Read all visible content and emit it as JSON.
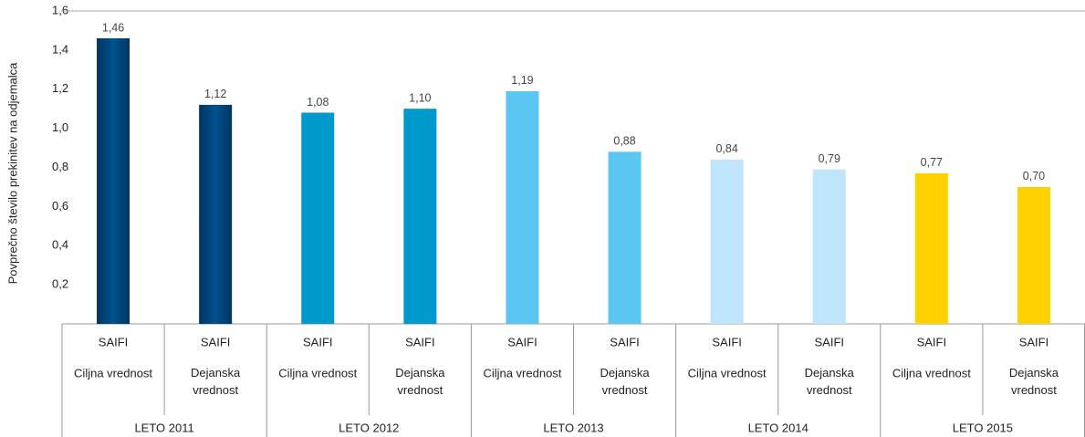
{
  "chart_data": {
    "type": "bar",
    "y_axis_label": "Povprečno število prekinitev na odjemalca",
    "categories": [
      "SAIFI",
      "SAIFI",
      "SAIFI",
      "SAIFI",
      "SAIFI",
      "SAIFI",
      "SAIFI",
      "SAIFI",
      "SAIFI",
      "SAIFI"
    ],
    "subcategories": [
      [
        "Ciljna vrednost"
      ],
      [
        "Dejanska",
        "vrednost"
      ],
      [
        "Ciljna vrednost"
      ],
      [
        "Dejanska",
        "vrednost"
      ],
      [
        "Ciljna vrednost"
      ],
      [
        "Dejanska",
        "vrednost"
      ],
      [
        "Ciljna vrednost"
      ],
      [
        "Dejanska",
        "vrednost"
      ],
      [
        "Ciljna vrednost"
      ],
      [
        "Dejanska",
        "vrednost"
      ]
    ],
    "groups": [
      "LETO 2011",
      "LETO 2012",
      "LETO 2013",
      "LETO 2014",
      "LETO 2015"
    ],
    "values": [
      1.46,
      1.12,
      1.08,
      1.1,
      1.19,
      0.88,
      0.84,
      0.79,
      0.77,
      0.7
    ],
    "value_labels": [
      "1,46",
      "1,12",
      "1,08",
      "1,10",
      "1,19",
      "0,88",
      "0,84",
      "0,79",
      "0,77",
      "0,70"
    ],
    "group_colors": [
      "#00528f",
      "#0099cc",
      "#5bc6f2",
      "#bfe5fa",
      "#ffd100"
    ],
    "ylim": [
      0,
      1.6
    ],
    "yticks": [
      {
        "value": 0.2,
        "label": "0,2"
      },
      {
        "value": 0.4,
        "label": "0,4"
      },
      {
        "value": 0.6,
        "label": "0,6"
      },
      {
        "value": 0.8,
        "label": "0,8"
      },
      {
        "value": 1.0,
        "label": "1,0"
      },
      {
        "value": 1.2,
        "label": "1,2"
      },
      {
        "value": 1.4,
        "label": "1,4"
      },
      {
        "value": 1.6,
        "label": "1,6"
      }
    ]
  }
}
